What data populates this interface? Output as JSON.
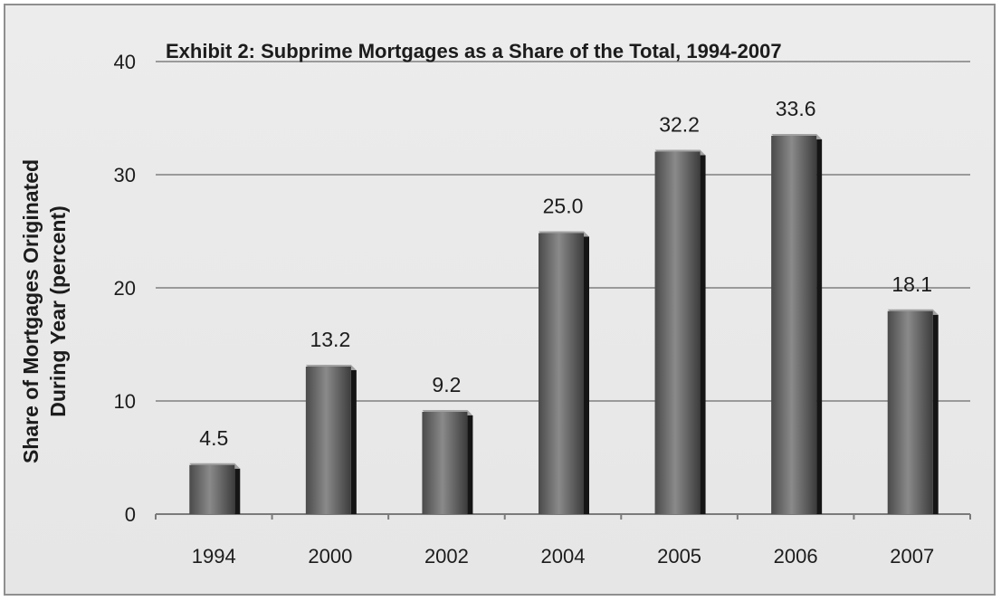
{
  "chart_data": {
    "type": "bar",
    "title": "Exhibit 2: Subprime Mortgages as a Share of the Total, 1994-2007",
    "ylabel_lines": [
      "Share of Mortgages Originated",
      "During Year (percent)"
    ],
    "xlabel": "",
    "categories": [
      "1994",
      "2000",
      "2002",
      "2004",
      "2005",
      "2006",
      "2007"
    ],
    "values": [
      4.5,
      13.2,
      9.2,
      25.0,
      32.2,
      33.6,
      18.1
    ],
    "data_labels": [
      "4.5",
      "13.2",
      "9.2",
      "25.0",
      "32.2",
      "33.6",
      "18.1"
    ],
    "ylim": [
      0,
      40
    ],
    "yticks": [
      "0",
      "10",
      "20",
      "30",
      "40"
    ],
    "grid": true,
    "legend": "none",
    "colors": {
      "bar": "#5e5e5e",
      "bar_dark": "#151515",
      "bar_light": "#a2a2a2",
      "grid": "#9a9a9a",
      "background": "#e8e8e8"
    }
  }
}
